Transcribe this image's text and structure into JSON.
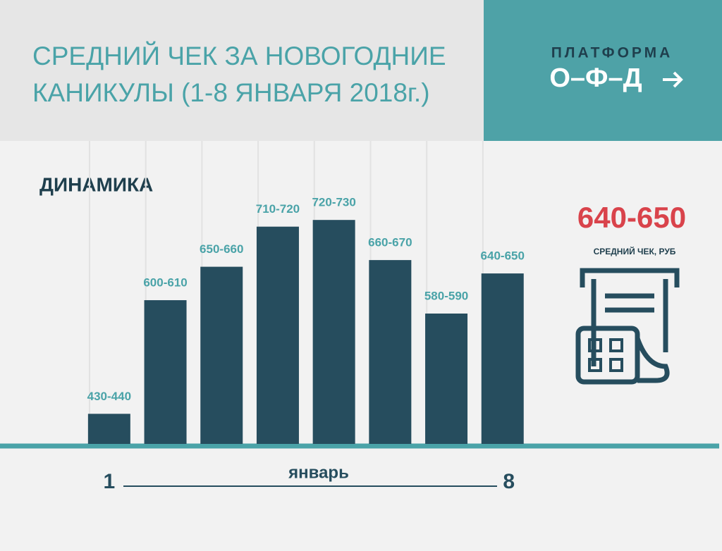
{
  "chart_data": {
    "type": "bar",
    "title_lines": [
      "СРЕДНИЙ ЧЕК ЗА НОВОГОДНИЕ",
      "КАНИКУЛЫ (1-8 ЯНВАРЯ 2018г.)"
    ],
    "brand": "ПЛАТФОРМА",
    "brand_mark": "О–Ф–Д",
    "subtitle": "ДИНАМИКА",
    "highlight": "640-650",
    "highlight_label": "СРЕДНИЙ ЧЕК, РУБ",
    "categories": [
      "1",
      null,
      null,
      null,
      null,
      null,
      null,
      "8"
    ],
    "x_label": "январь",
    "values": [
      435,
      605,
      655,
      715,
      725,
      665,
      585,
      645
    ],
    "value_labels": [
      "430-440",
      "600-610",
      "650-660",
      "710-720",
      "720-730",
      "660-670",
      "580-590",
      "640-650"
    ],
    "color": "#264d5e",
    "label_color": "#4aa3a8",
    "highlight_color": "#d9434b",
    "ylim": [
      390,
      780
    ]
  }
}
